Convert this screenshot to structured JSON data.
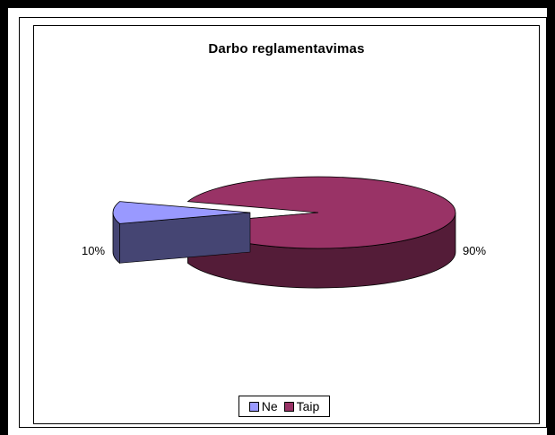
{
  "chart_data": {
    "type": "pie",
    "title": "Darbo reglamentavimas",
    "categories": [
      "Ne",
      "Taip"
    ],
    "values": [
      10,
      90
    ],
    "data_labels": [
      "10%",
      "90%"
    ],
    "legend_position": "bottom",
    "colors": {
      "Ne": "#9999ff",
      "Taip": "#993366"
    }
  }
}
